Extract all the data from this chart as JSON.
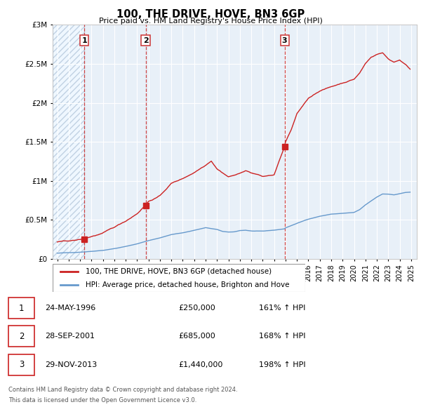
{
  "title": "100, THE DRIVE, HOVE, BN3 6GP",
  "subtitle": "Price paid vs. HM Land Registry's House Price Index (HPI)",
  "hpi_label": "HPI: Average price, detached house, Brighton and Hove",
  "property_label": "100, THE DRIVE, HOVE, BN3 6GP (detached house)",
  "footer1": "Contains HM Land Registry data © Crown copyright and database right 2024.",
  "footer2": "This data is licensed under the Open Government Licence v3.0.",
  "transactions": [
    {
      "num": 1,
      "date": "24-MAY-1996",
      "price": "£250,000",
      "hpi": "161% ↑ HPI",
      "year": 1996.38
    },
    {
      "num": 2,
      "date": "28-SEP-2001",
      "price": "£685,000",
      "hpi": "168% ↑ HPI",
      "year": 2001.75
    },
    {
      "num": 3,
      "date": "29-NOV-2013",
      "price": "£1,440,000",
      "hpi": "198% ↑ HPI",
      "year": 2013.92
    }
  ],
  "transaction_values": [
    250000,
    685000,
    1440000
  ],
  "hpi_color": "#6699cc",
  "property_color": "#cc2222",
  "dashed_vline_color": "#cc3333",
  "bg_fill_color": "#ddeeff",
  "bg_chart_color": "#e8f0f8",
  "ylim": [
    0,
    3000000
  ],
  "xlim_start": 1993.6,
  "xlim_end": 2025.5
}
